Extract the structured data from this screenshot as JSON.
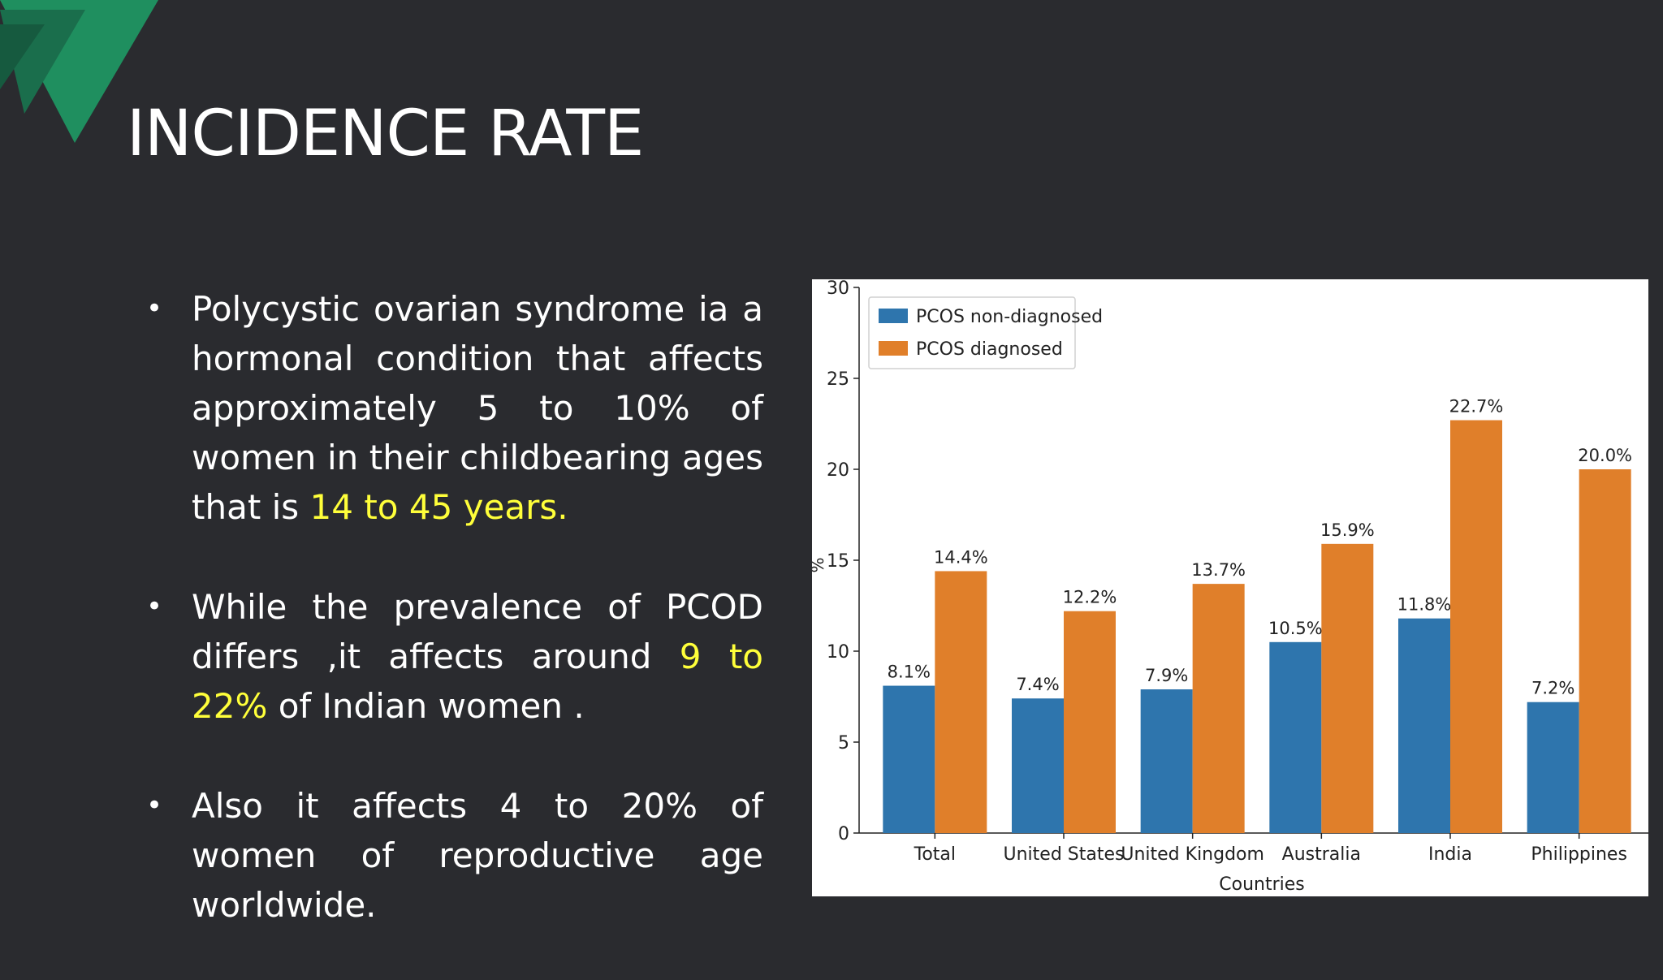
{
  "slide": {
    "title": "INCIDENCE RATE",
    "brand_colors": {
      "background": "#2a2b2f",
      "accent_green": "#1f8f5f",
      "highlight": "#ffff3a"
    },
    "bullets": [
      {
        "before": "Polycystic ovarian syndrome ia a hormonal condition  that affects approximately 5 to 10% of women in their childbearing ages that is ",
        "highlight": "14 to 45 years.",
        "after": ""
      },
      {
        "before": "While the prevalence of PCOD differs ,it affects around ",
        "highlight": "9 to 22%",
        "after": " of Indian women ."
      },
      {
        "before": "Also it affects 4 to 20% of  women of reproductive age worldwide. ",
        "highlight": "",
        "after": ""
      }
    ]
  },
  "chart_data": {
    "type": "bar",
    "categories": [
      "Total",
      "United States",
      "United Kingdom",
      "Australia",
      "India",
      "Philippines"
    ],
    "series": [
      {
        "name": "PCOS non-diagnosed",
        "color": "#2e75ad",
        "values": [
          8.1,
          7.4,
          7.9,
          10.5,
          11.8,
          7.2
        ],
        "labels": [
          "8.1%",
          "7.4%",
          "7.9%",
          "10.5%",
          "11.8%",
          "7.2%"
        ]
      },
      {
        "name": "PCOS diagnosed",
        "color": "#e07f2a",
        "values": [
          14.4,
          12.2,
          13.7,
          15.9,
          22.7,
          20.0
        ],
        "labels": [
          "14.4%",
          "12.2%",
          "13.7%",
          "15.9%",
          "22.7%",
          "20.0%"
        ]
      }
    ],
    "xlabel": "Countries",
    "ylabel": "%",
    "ylim": [
      0,
      30
    ],
    "yticks": [
      0,
      5,
      10,
      15,
      20,
      25,
      30
    ],
    "legend_position": "top-left",
    "grid": false
  }
}
